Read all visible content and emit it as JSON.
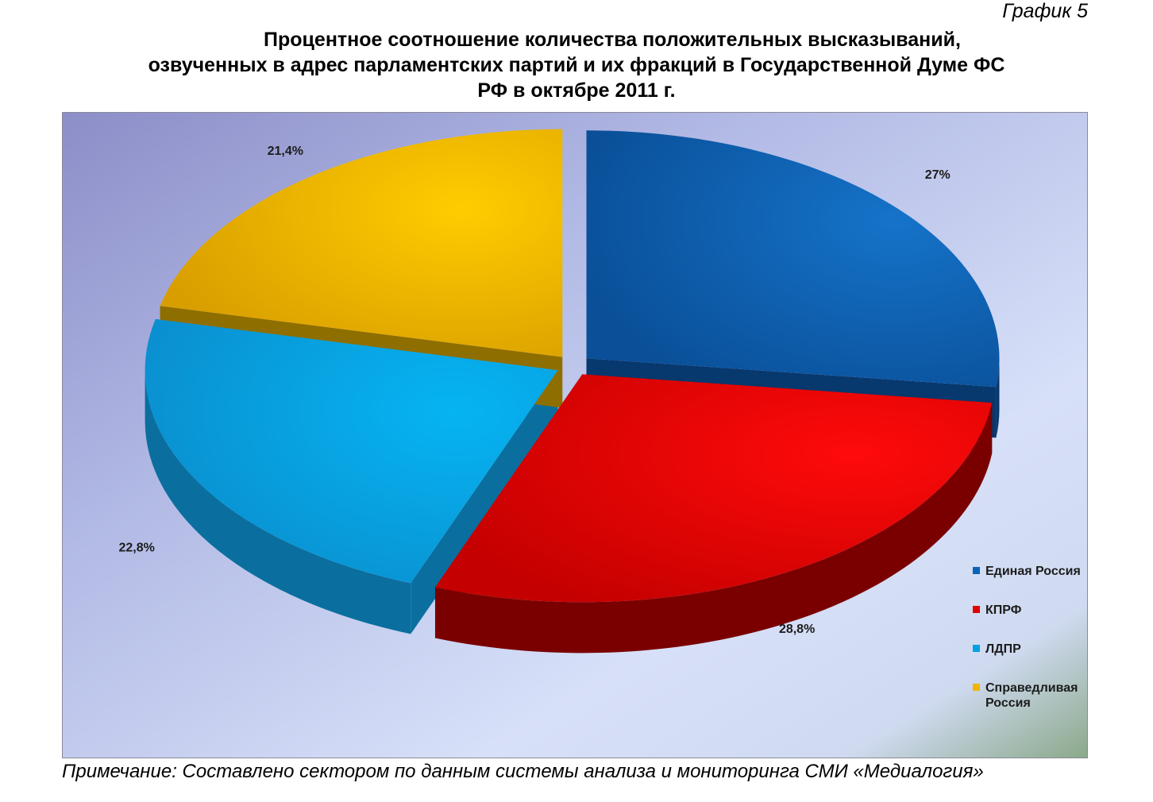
{
  "header": {
    "chart_number": "График 5",
    "title_lines": [
      "Процентное соотношение количества положительных высказываний,",
      "озвученных в адрес парламентских партий и их фракций в Государственной Думе ФС",
      "РФ в октябре 2011 г."
    ]
  },
  "footer": {
    "note": "Примечание: Составлено сектором по данным системы анализа и мониторинга СМИ «Медиалогия»"
  },
  "chart_data": {
    "type": "pie",
    "style": "3d-exploded",
    "title": "Процентное соотношение количества положительных высказываний, озвученных в адрес парламентских партий и их фракций в Государственной Думе ФС РФ в октябре 2011 г.",
    "categories": [
      "Единая Россия",
      "КПРФ",
      "ЛДПР",
      "Справедливая Россия"
    ],
    "values": [
      27,
      28.8,
      22.8,
      21.4
    ],
    "value_labels": [
      "27%",
      "28,8%",
      "22,8%",
      "21,4%"
    ],
    "colors": [
      "#0a63b8",
      "#e00000",
      "#00a1e2",
      "#f2b400"
    ],
    "legend_position": "right",
    "legend": [
      {
        "label": "Единая Россия",
        "color": "#0a63b8"
      },
      {
        "label": "КПРФ",
        "color": "#e00000"
      },
      {
        "label": "ЛДПР",
        "color": "#00a1e2"
      },
      {
        "label": "Справедливая Россия",
        "color": "#f2b400"
      }
    ]
  }
}
